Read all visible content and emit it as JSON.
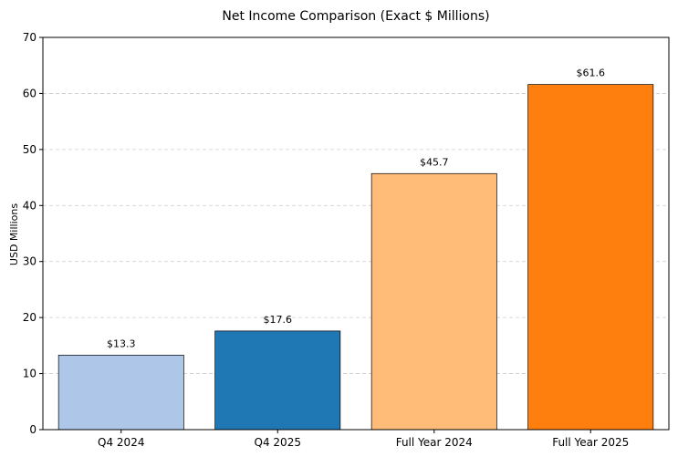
{
  "chart_data": {
    "type": "bar",
    "title": "Net Income Comparison (Exact $ Millions)",
    "xlabel": "",
    "ylabel": "USD Millions",
    "ylim": [
      0,
      70
    ],
    "yticks": [
      0,
      10,
      20,
      30,
      40,
      50,
      60,
      70
    ],
    "grid": "y-dashed",
    "categories": [
      "Q4 2024",
      "Q4 2025",
      "Full Year 2024",
      "Full Year 2025"
    ],
    "values": [
      13.3,
      17.6,
      45.7,
      61.6
    ],
    "data_labels": [
      "$13.3",
      "$17.6",
      "$45.7",
      "$61.6"
    ],
    "colors": [
      "#aec7e8",
      "#1f77b4",
      "#ffbb78",
      "#ff7f0e"
    ]
  }
}
